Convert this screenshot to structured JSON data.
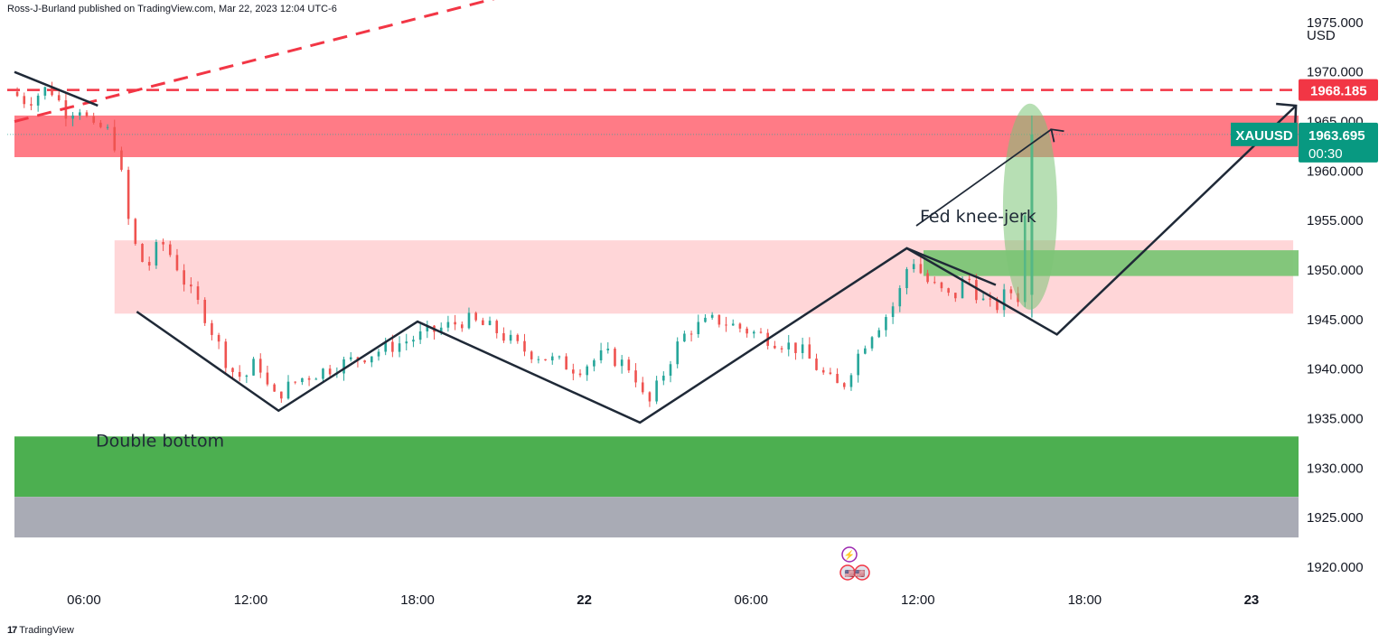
{
  "header": {
    "publisher": "Ross-J-Burland published on TradingView.com, Mar 22, 2023 12:04 UTC-6"
  },
  "branding": {
    "logo": "17",
    "name": "TradingView"
  },
  "colors": {
    "candle_up": "#26a69a",
    "candle_down": "#ef5350",
    "resistance": "#ff7b86",
    "range_zone": "#ffd6d8",
    "support_green": "#4caf50",
    "grey_zone": "#a9abb5",
    "dash_red": "#f23645",
    "pattern_line": "#1f2937",
    "ellipse_green": "#7cc576"
  },
  "chart_data": {
    "type": "candlestick",
    "symbol": "XAUUSD",
    "currency": "USD",
    "last_price": "1963.695",
    "countdown": "00:30",
    "level_price": "1968.185",
    "ylim": [
      1918,
      1980
    ],
    "y_ticks": [
      "1975.000",
      "1970.000",
      "1965.000",
      "1960.000",
      "1955.000",
      "1950.000",
      "1945.000",
      "1940.000",
      "1935.000",
      "1930.000",
      "1925.000",
      "1920.000"
    ],
    "x_range_hours": [
      3.5,
      52
    ],
    "x_ticks": [
      {
        "label": "06:00",
        "h": 6
      },
      {
        "label": "12:00",
        "h": 12
      },
      {
        "label": "18:00",
        "h": 18
      },
      {
        "label": "22",
        "h": 24
      },
      {
        "label": "06:00",
        "h": 30
      },
      {
        "label": "12:00",
        "h": 36
      },
      {
        "label": "18:00",
        "h": 42
      },
      {
        "label": "23",
        "h": 48
      }
    ],
    "price_path": [
      [
        3.6,
        1968
      ],
      [
        4.2,
        1967
      ],
      [
        5.0,
        1968.5
      ],
      [
        5.6,
        1966
      ],
      [
        6.2,
        1966.5
      ],
      [
        6.5,
        1964
      ],
      [
        7.0,
        1964.5
      ],
      [
        7.5,
        1962
      ],
      [
        7.7,
        1957
      ],
      [
        8.0,
        1953
      ],
      [
        8.5,
        1950
      ],
      [
        9.0,
        1953
      ],
      [
        9.5,
        1951
      ],
      [
        10.0,
        1948
      ],
      [
        10.5,
        1946
      ],
      [
        11.0,
        1943
      ],
      [
        11.5,
        1940
      ],
      [
        12.0,
        1939
      ],
      [
        12.5,
        1941
      ],
      [
        13.0,
        1937
      ],
      [
        13.5,
        1938
      ],
      [
        14.0,
        1939
      ],
      [
        15.0,
        1940
      ],
      [
        16.0,
        1941
      ],
      [
        17.0,
        1942
      ],
      [
        18.0,
        1943
      ],
      [
        19.0,
        1944
      ],
      [
        20.0,
        1945
      ],
      [
        21.0,
        1944
      ],
      [
        22.0,
        1942
      ],
      [
        23.0,
        1941
      ],
      [
        24.0,
        1940
      ],
      [
        25.0,
        1941.5
      ],
      [
        26.0,
        1940
      ],
      [
        26.5,
        1936
      ],
      [
        27.0,
        1939
      ],
      [
        27.5,
        1942
      ],
      [
        28.0,
        1944
      ],
      [
        29.0,
        1945
      ],
      [
        30.0,
        1944
      ],
      [
        31.0,
        1943
      ],
      [
        32.0,
        1942
      ],
      [
        33.0,
        1939
      ],
      [
        33.5,
        1938
      ],
      [
        34.0,
        1941
      ],
      [
        34.5,
        1943.5
      ],
      [
        35.0,
        1945
      ],
      [
        35.5,
        1947
      ],
      [
        36.0,
        1951.5
      ],
      [
        36.5,
        1949
      ],
      [
        37.0,
        1948
      ],
      [
        37.5,
        1947
      ],
      [
        38.0,
        1949.5
      ],
      [
        38.5,
        1947
      ],
      [
        39.0,
        1946
      ],
      [
        39.5,
        1948
      ],
      [
        40.0,
        1947
      ],
      [
        40.2,
        1963.7
      ]
    ],
    "zones": [
      {
        "name": "resistance",
        "y1": 1961.4,
        "y2": 1965.6,
        "x1": 3.5,
        "x2": 51.3
      },
      {
        "name": "range",
        "y1": 1945.6,
        "y2": 1953.0,
        "x1": 7.1,
        "x2": 49.5
      },
      {
        "name": "support-green",
        "y1": 1927.1,
        "y2": 1933.2,
        "x1": 3.5,
        "x2": 51.3
      },
      {
        "name": "grey",
        "y1": 1923.0,
        "y2": 1927.1,
        "x1": 3.5,
        "x2": 51.3
      },
      {
        "name": "target-green",
        "y1": 1949.4,
        "y2": 1952.0,
        "x1": 36.2,
        "x2": 53.0
      }
    ],
    "pattern_points": [
      [
        7.9,
        1945.8
      ],
      [
        13.0,
        1935.8
      ],
      [
        18.0,
        1944.8
      ],
      [
        26.0,
        1934.6
      ],
      [
        35.6,
        1952.2
      ],
      [
        41.0,
        1943.5
      ],
      [
        49.6,
        1966.6
      ]
    ],
    "topline": [
      [
        3.5,
        1970.0
      ],
      [
        6.5,
        1966.6
      ]
    ],
    "trend_dashed": [
      [
        3.5,
        1965.0
      ],
      [
        23.0,
        1979.0
      ]
    ],
    "annotations": {
      "double_bottom": "Double bottom",
      "fed_knee_jerk": "Fed knee-jerk"
    },
    "events": {
      "lightning": "⚡",
      "flags": "🇺🇸🇺🇸"
    }
  }
}
